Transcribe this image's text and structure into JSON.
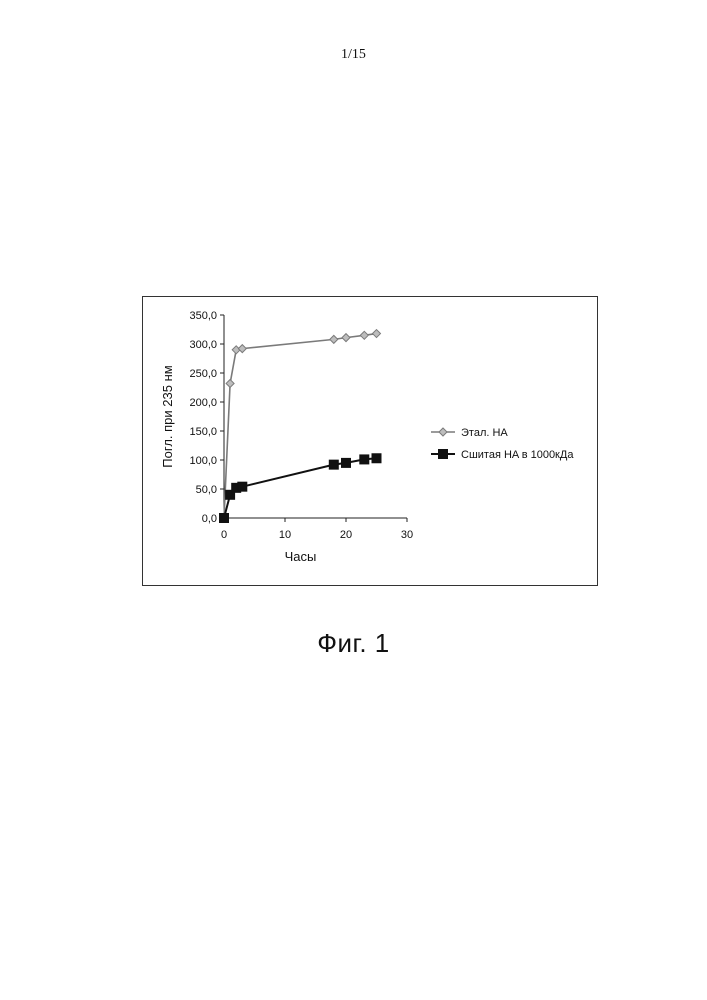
{
  "page": {
    "number": "1/15",
    "caption": "Фиг. 1"
  },
  "chart_data": {
    "type": "line",
    "xlabel": "Часы",
    "ylabel": "Погл. при 235 нм",
    "xlim": [
      0,
      30
    ],
    "ylim": [
      0,
      350
    ],
    "xticks": [
      0,
      10,
      20,
      30
    ],
    "yticks": [
      0,
      50,
      100,
      150,
      200,
      250,
      300,
      350
    ],
    "ytick_labels": [
      "0,0",
      "50,0",
      "100,0",
      "150,0",
      "200,0",
      "250,0",
      "300,0",
      "350,0"
    ],
    "grid": false,
    "legend": "right",
    "series": [
      {
        "name": "Этал. HA",
        "marker": "diamond",
        "color": "#7a7a7a",
        "points": [
          [
            0,
            0
          ],
          [
            1,
            232
          ],
          [
            2,
            290
          ],
          [
            3,
            292
          ],
          [
            18,
            308
          ],
          [
            20,
            311
          ],
          [
            23,
            315
          ],
          [
            25,
            318
          ]
        ]
      },
      {
        "name": "Сшитая HA в 1000кДа",
        "marker": "square",
        "color": "#111111",
        "points": [
          [
            0,
            0
          ],
          [
            1,
            40
          ],
          [
            2,
            52
          ],
          [
            3,
            54
          ],
          [
            18,
            92
          ],
          [
            20,
            95
          ],
          [
            23,
            101
          ],
          [
            25,
            103
          ]
        ]
      }
    ]
  }
}
